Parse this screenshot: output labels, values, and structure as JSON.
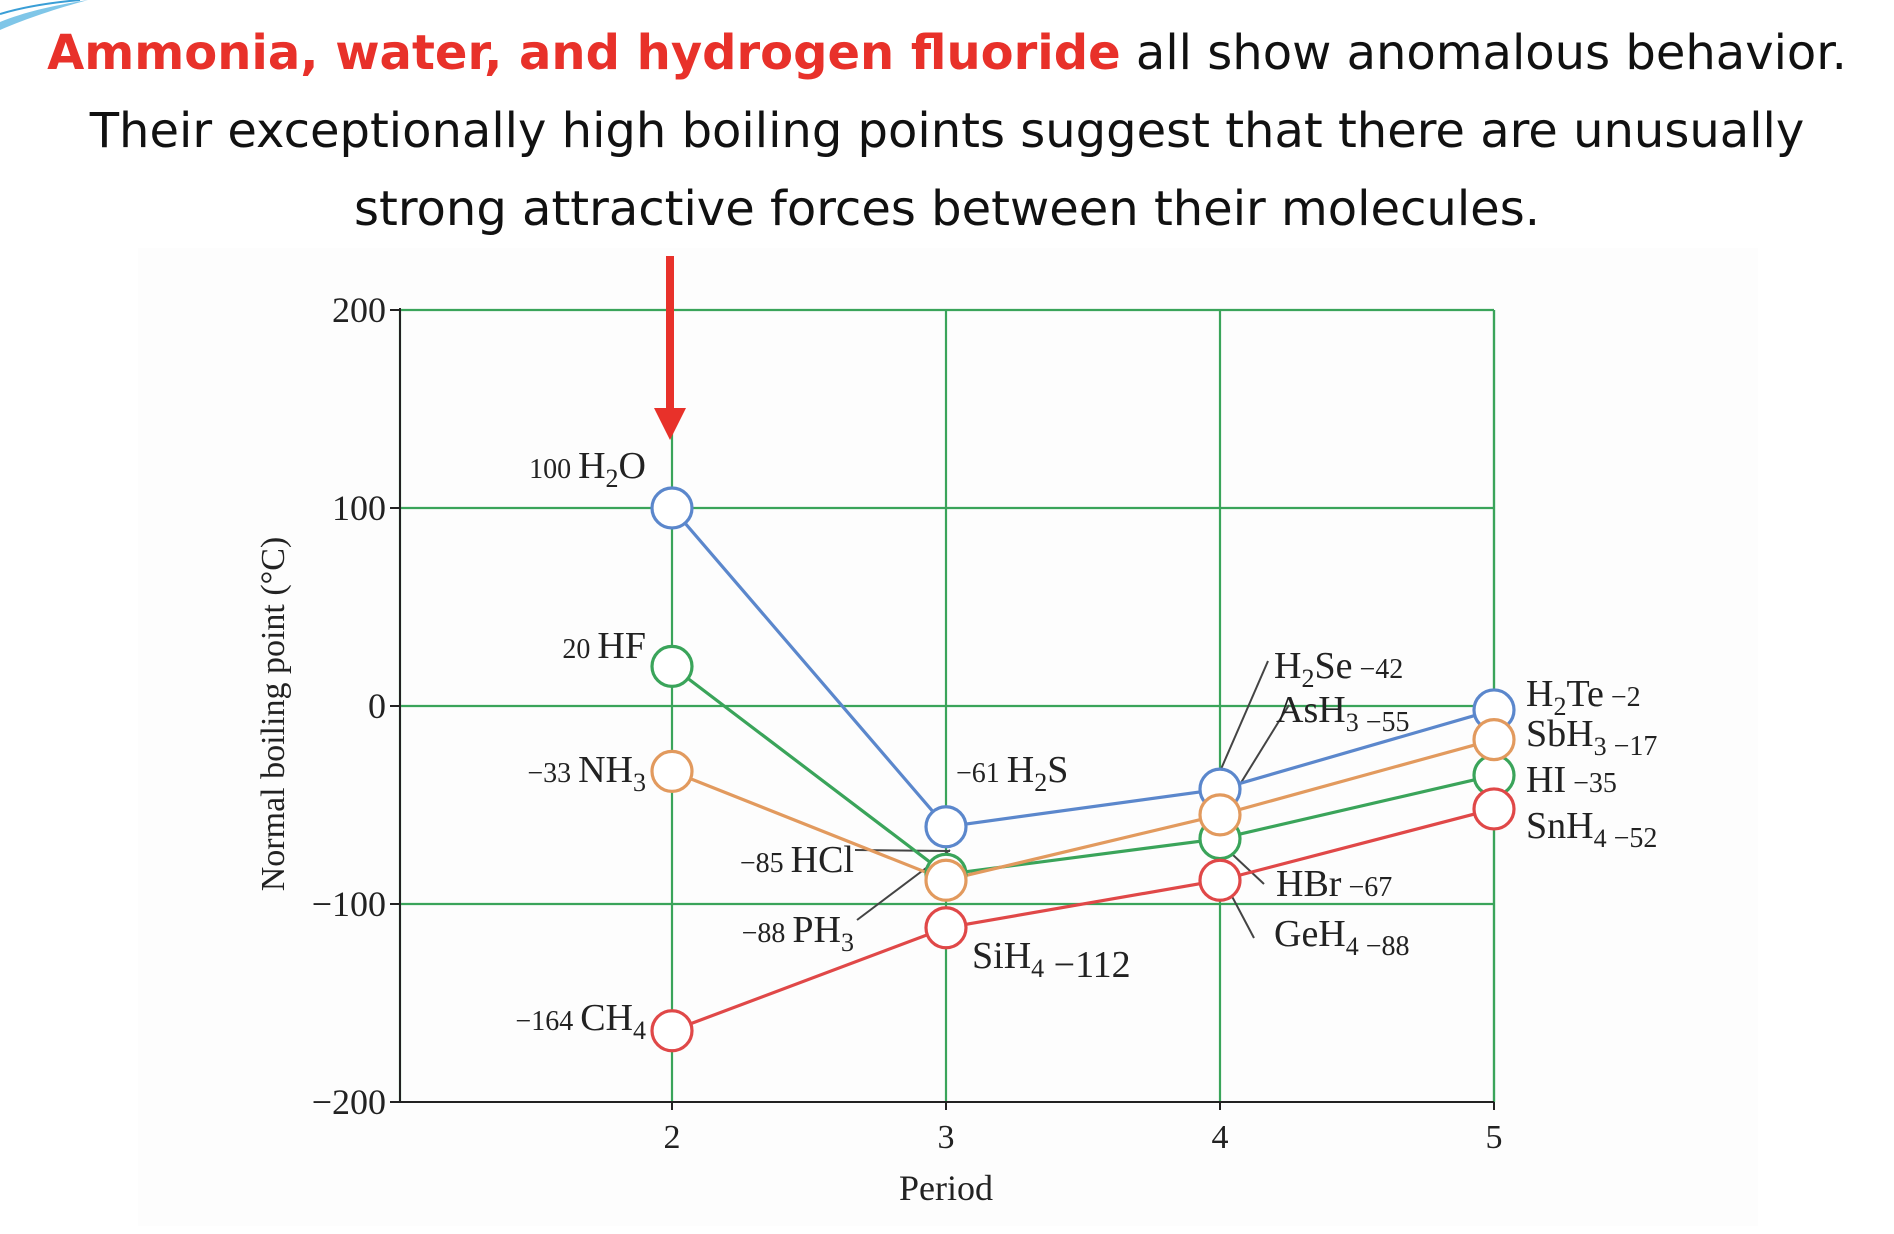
{
  "heading": {
    "highlight": "Ammonia, water, and hydrogen fluoride",
    "line1_rest": " all show anomalous behavior.",
    "line2": "Their exceptionally high boiling points suggest that there are unusually",
    "line3": "strong attractive forces between their molecules."
  },
  "colors": {
    "highlight": "#e8312a",
    "arrow": "#e8312a",
    "grid": "#3aa45a",
    "group16": "#5b87cc",
    "group17": "#3aa45a",
    "group15": "#e29a5e",
    "group14": "#e04848"
  },
  "chart_data": {
    "type": "line",
    "xlabel": "Period",
    "ylabel": "Normal boiling point (°C)",
    "x": [
      2,
      3,
      4,
      5
    ],
    "xlim": [
      2,
      5
    ],
    "ylim": [
      -200,
      200
    ],
    "yticks": [
      200,
      100,
      0,
      -100,
      -200
    ],
    "xticks": [
      2,
      3,
      4,
      5
    ],
    "grid": true,
    "series": [
      {
        "key": "group16",
        "values": [
          100,
          -61,
          -42,
          -2
        ]
      },
      {
        "key": "group17",
        "values": [
          20,
          -85,
          -67,
          -35
        ]
      },
      {
        "key": "group15",
        "values": [
          -33,
          -88,
          -55,
          -17
        ]
      },
      {
        "key": "group14",
        "values": [
          -164,
          -112,
          -88,
          -52
        ]
      }
    ],
    "point_labels": [
      {
        "value": "100",
        "formula": "H",
        "sub": "2",
        "tail": "O"
      },
      {
        "value": "20",
        "formula": "HF",
        "sub": "",
        "tail": ""
      },
      {
        "value": "-33",
        "formula": "NH",
        "sub": "3",
        "tail": ""
      },
      {
        "value": "-164",
        "formula": "CH",
        "sub": "4",
        "tail": ""
      },
      {
        "value": "-61",
        "formula": "H",
        "sub": "2",
        "tail": "S"
      },
      {
        "value": "-85",
        "formula": "HCl",
        "sub": "",
        "tail": ""
      },
      {
        "value": "-88",
        "formula": "PH",
        "sub": "3",
        "tail": ""
      },
      {
        "value": "-112",
        "formula": "SiH",
        "sub": "4",
        "tail": ""
      },
      {
        "value": "-42",
        "formula": "H",
        "sub": "2",
        "tail": "Se"
      },
      {
        "value": "-55",
        "formula": "AsH",
        "sub": "3",
        "tail": ""
      },
      {
        "value": "-67",
        "formula": "HBr",
        "sub": "",
        "tail": ""
      },
      {
        "value": "-88",
        "formula": "GeH",
        "sub": "4",
        "tail": ""
      },
      {
        "value": "-2",
        "formula": "H",
        "sub": "2",
        "tail": "Te"
      },
      {
        "value": "-17",
        "formula": "SbH",
        "sub": "3",
        "tail": ""
      },
      {
        "value": "-35",
        "formula": "HI",
        "sub": "",
        "tail": ""
      },
      {
        "value": "-52",
        "formula": "SnH",
        "sub": "4",
        "tail": ""
      }
    ]
  }
}
